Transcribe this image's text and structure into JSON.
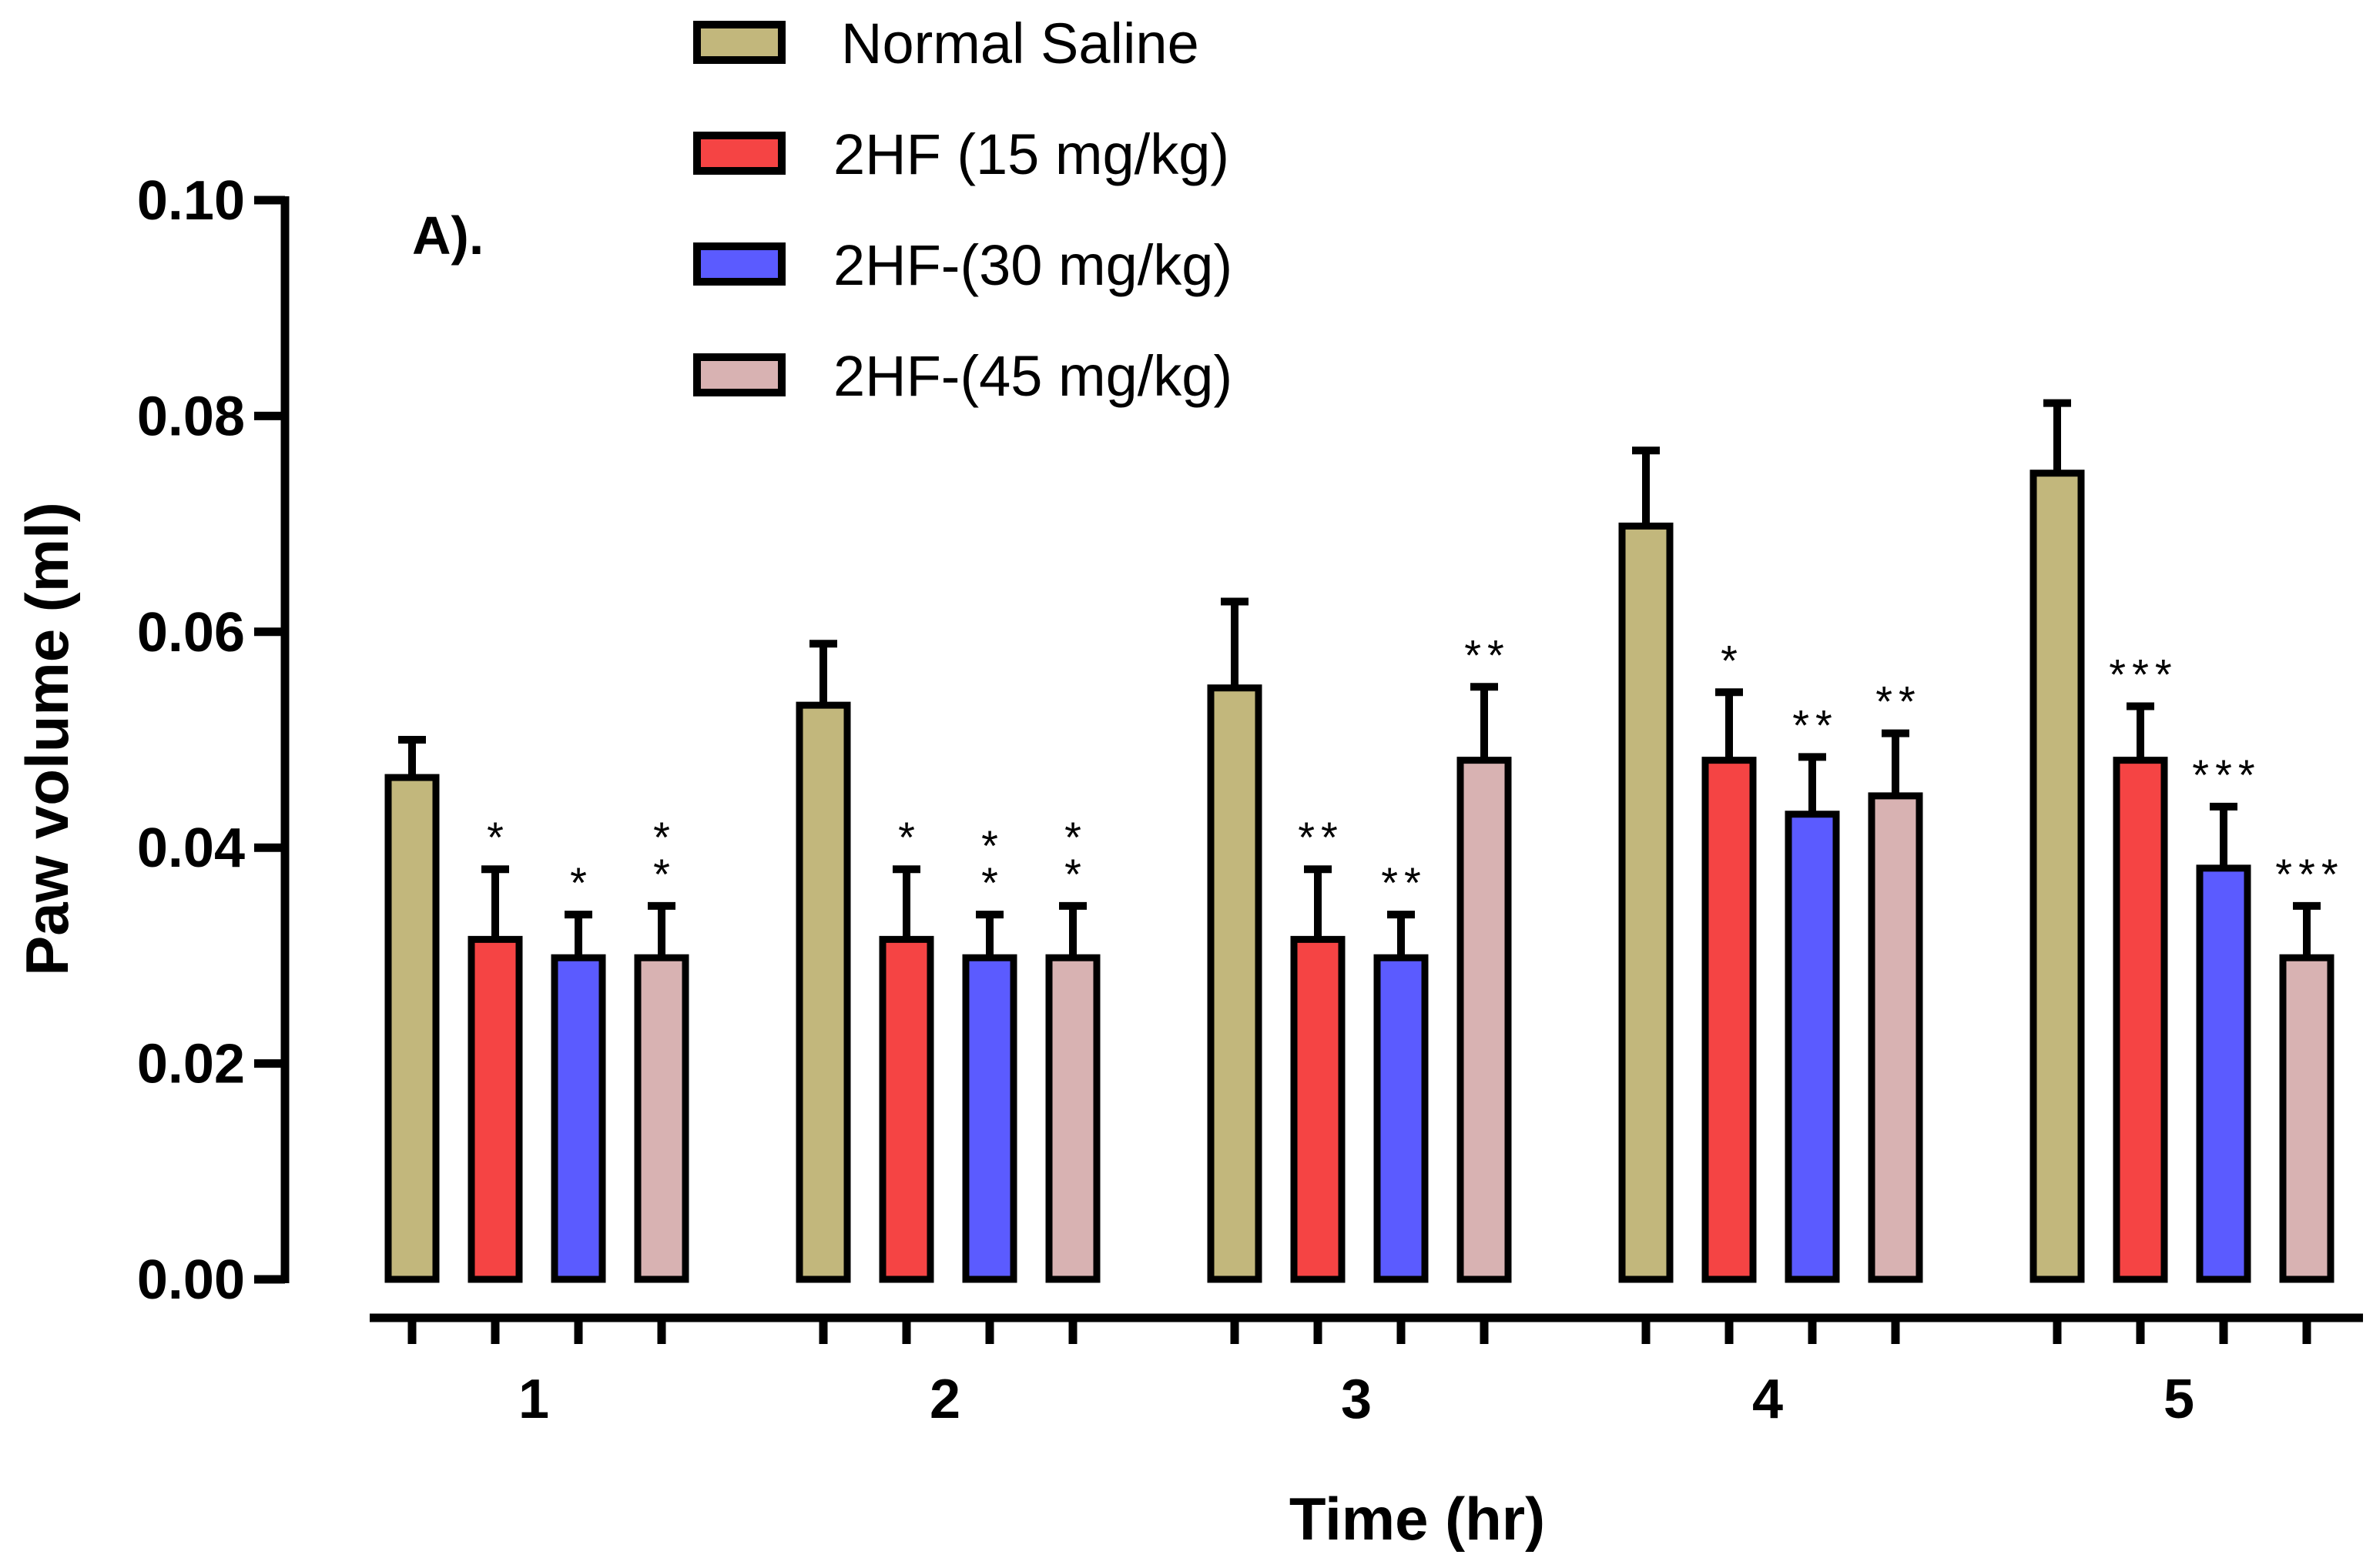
{
  "chart_data": {
    "type": "bar",
    "panel_label": "A).",
    "xlabel": "Time (hr)",
    "ylabel": "Paw volume (ml)",
    "ylim": [
      0,
      0.1
    ],
    "yticks": [
      "0.00",
      "0.02",
      "0.04",
      "0.06",
      "0.08",
      "0.10"
    ],
    "categories": [
      "1",
      "2",
      "3",
      "4",
      "5"
    ],
    "legend_position": "top-center",
    "grid": false,
    "series": [
      {
        "name": "Normal Saline",
        "color": "#c2b77c",
        "values": [
          0.0465,
          0.0532,
          0.0548,
          0.0698,
          0.0747
        ],
        "errors": [
          0.0035,
          0.0057,
          0.008,
          0.007,
          0.0065
        ],
        "significance": [
          "",
          "",
          "",
          "",
          ""
        ]
      },
      {
        "name": "2HF (15 mg/kg)",
        "color": "#f54444",
        "values": [
          0.0315,
          0.0315,
          0.0315,
          0.0481,
          0.0481
        ],
        "errors": [
          0.0065,
          0.0065,
          0.0065,
          0.0063,
          0.005
        ],
        "significance": [
          "*",
          "*",
          "**",
          "*",
          "***"
        ]
      },
      {
        "name": "2HF-(30 mg/kg)",
        "color": "#5b5bff",
        "values": [
          0.0298,
          0.0298,
          0.0298,
          0.0431,
          0.0381
        ],
        "errors": [
          0.004,
          0.004,
          0.004,
          0.0053,
          0.0057
        ],
        "significance": [
          "*",
          "*\n*",
          "**",
          "**",
          "***"
        ]
      },
      {
        "name": "2HF-(45 mg/kg)",
        "color": "#d8b2b2",
        "values": [
          0.0298,
          0.0298,
          0.0481,
          0.0448,
          0.0298
        ],
        "errors": [
          0.0048,
          0.0048,
          0.0068,
          0.0058,
          0.0048
        ],
        "significance": [
          "*\n*",
          "*\n*",
          "**",
          "**",
          "***"
        ]
      }
    ]
  }
}
